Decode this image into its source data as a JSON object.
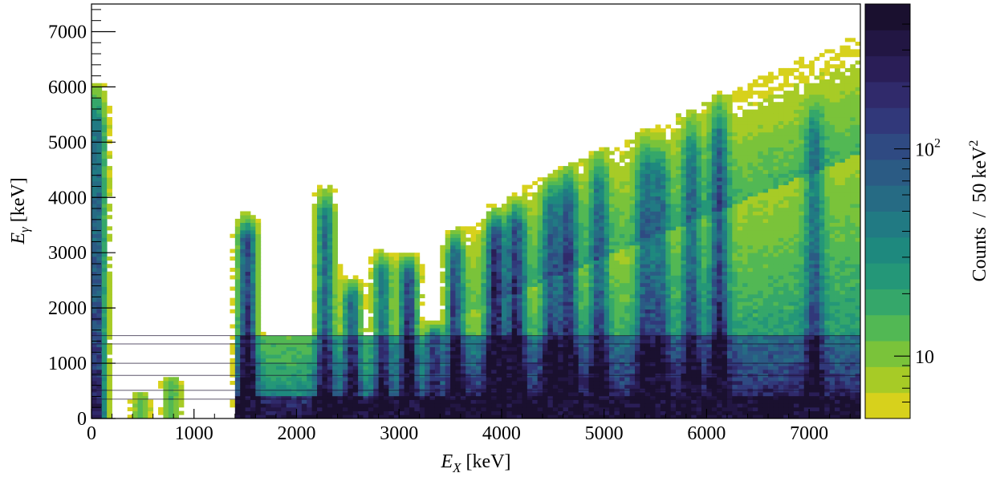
{
  "chart_data": {
    "type": "heatmap",
    "title": "",
    "x_axis": {
      "label_symbol": "E",
      "label_subscript": "X",
      "label_unit": "[keV]",
      "range": [
        0,
        7500
      ],
      "ticks": [
        0,
        1000,
        2000,
        3000,
        4000,
        5000,
        6000,
        7000
      ],
      "tick_labels": [
        "0",
        "1000",
        "2000",
        "3000",
        "4000",
        "5000",
        "6000",
        "7000"
      ]
    },
    "y_axis": {
      "label_symbol": "E",
      "label_subscript": "γ",
      "label_unit": "[keV]",
      "range": [
        0,
        7500
      ],
      "ticks": [
        0,
        1000,
        2000,
        3000,
        4000,
        5000,
        6000,
        7000
      ],
      "tick_labels": [
        "0",
        "1000",
        "2000",
        "3000",
        "4000",
        "5000",
        "6000",
        "7000"
      ]
    },
    "z_axis": {
      "label": "Counts  /  50 keV",
      "label_superscript": "2",
      "scale": "log",
      "range": [
        5,
        500
      ],
      "major_ticks": [
        10,
        100
      ],
      "major_tick_labels_base": [
        "10",
        "10"
      ],
      "major_tick_labels_exp": [
        "",
        "2"
      ],
      "minor_ticks": [
        6,
        7,
        8,
        9,
        20,
        30,
        40,
        50,
        60,
        70,
        80,
        90,
        200,
        300,
        400,
        500
      ],
      "palette": [
        "#d7d11c",
        "#a7cb26",
        "#7ac33a",
        "#52b854",
        "#35a76a",
        "#249778",
        "#1e897e",
        "#217a83",
        "#266b84",
        "#2b5b84",
        "#2f4a82",
        "#31387a",
        "#302a6b",
        "#2a1e57",
        "#221643",
        "#1a102f"
      ]
    },
    "vertical_bands": [
      {
        "x": 50,
        "y_top": 6200,
        "strength": 0.9
      },
      {
        "x": 480,
        "y_top": 500,
        "strength": 0.2
      },
      {
        "x": 780,
        "y_top": 800,
        "strength": 0.25
      },
      {
        "x": 1520,
        "y_top": 3800,
        "strength": 1.0
      },
      {
        "x": 2280,
        "y_top": 4300,
        "strength": 0.75
      },
      {
        "x": 2540,
        "y_top": 2600,
        "strength": 0.7
      },
      {
        "x": 2840,
        "y_top": 3100,
        "strength": 0.65
      },
      {
        "x": 3090,
        "y_top": 3050,
        "strength": 0.95
      },
      {
        "x": 3340,
        "y_top": 1800,
        "strength": 0.6
      },
      {
        "x": 3540,
        "y_top": 3500,
        "strength": 0.7
      },
      {
        "x": 3940,
        "y_top": 3900,
        "strength": 0.95
      },
      {
        "x": 4140,
        "y_top": 4100,
        "strength": 0.85
      },
      {
        "x": 4480,
        "y_top": 4500,
        "strength": 0.6
      },
      {
        "x": 4650,
        "y_top": 4700,
        "strength": 0.75
      },
      {
        "x": 4950,
        "y_top": 5000,
        "strength": 0.6
      },
      {
        "x": 5400,
        "y_top": 5300,
        "strength": 0.55
      },
      {
        "x": 5550,
        "y_top": 5200,
        "strength": 0.5
      },
      {
        "x": 5850,
        "y_top": 5700,
        "strength": 0.55
      },
      {
        "x": 6120,
        "y_top": 6000,
        "strength": 0.7
      },
      {
        "x": 7050,
        "y_top": 6000,
        "strength": 0.5
      }
    ],
    "horizontal_lines_y": [
      1500,
      1350,
      1000,
      780,
      510,
      350
    ],
    "diagonal_ridge": {
      "from": [
        3500,
        1800
      ],
      "to": [
        7500,
        4800
      ]
    },
    "upper_diagonal_edge": {
      "from": [
        4200,
        4200
      ],
      "to": [
        7500,
        7000
      ]
    }
  }
}
